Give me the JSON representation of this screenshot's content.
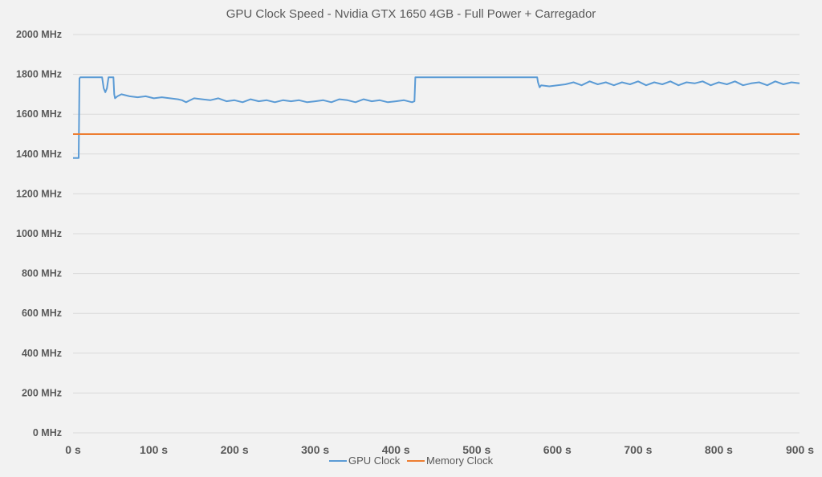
{
  "chart_data": {
    "type": "line",
    "title": "GPU Clock Speed - Nvidia GTX 1650 4GB - Full Power + Carregador",
    "xlabel": "",
    "ylabel": "",
    "xlim": [
      0,
      900
    ],
    "ylim": [
      0,
      2000
    ],
    "x_ticks": [
      "0 s",
      "100 s",
      "200 s",
      "300 s",
      "400 s",
      "500 s",
      "600 s",
      "700 s",
      "800 s",
      "900 s"
    ],
    "y_ticks": [
      "0 MHz",
      "200 MHz",
      "400 MHz",
      "600 MHz",
      "800 MHz",
      "1000 MHz",
      "1200 MHz",
      "1400 MHz",
      "1600 MHz",
      "1800 MHz",
      "2000 MHz"
    ],
    "grid": "horizontal",
    "legend_position": "bottom",
    "series": [
      {
        "name": "GPU Clock",
        "color": "#5b9bd5",
        "x": [
          0,
          7,
          8,
          9,
          10,
          20,
          30,
          33,
          36,
          38,
          40,
          42,
          44,
          46,
          48,
          50,
          51,
          52,
          55,
          60,
          70,
          80,
          90,
          100,
          110,
          120,
          130,
          135,
          140,
          150,
          160,
          170,
          180,
          190,
          200,
          210,
          220,
          230,
          240,
          250,
          260,
          270,
          280,
          290,
          300,
          310,
          320,
          330,
          340,
          350,
          360,
          370,
          380,
          390,
          400,
          410,
          420,
          423,
          424,
          425,
          430,
          450,
          500,
          550,
          575,
          576,
          578,
          580,
          590,
          600,
          610,
          620,
          630,
          640,
          650,
          660,
          670,
          680,
          690,
          700,
          710,
          720,
          730,
          740,
          750,
          760,
          770,
          780,
          790,
          800,
          810,
          820,
          830,
          840,
          850,
          860,
          870,
          880,
          890,
          900
        ],
        "y": [
          1380,
          1380,
          1780,
          1785,
          1785,
          1785,
          1785,
          1785,
          1785,
          1730,
          1710,
          1730,
          1785,
          1785,
          1785,
          1785,
          1700,
          1680,
          1690,
          1700,
          1690,
          1685,
          1690,
          1680,
          1685,
          1680,
          1675,
          1670,
          1660,
          1680,
          1675,
          1670,
          1680,
          1665,
          1670,
          1660,
          1675,
          1665,
          1670,
          1660,
          1670,
          1665,
          1670,
          1660,
          1665,
          1670,
          1660,
          1675,
          1670,
          1660,
          1675,
          1665,
          1670,
          1660,
          1665,
          1670,
          1660,
          1665,
          1785,
          1785,
          1785,
          1785,
          1785,
          1785,
          1785,
          1760,
          1735,
          1745,
          1740,
          1745,
          1750,
          1760,
          1745,
          1765,
          1750,
          1760,
          1745,
          1760,
          1750,
          1765,
          1745,
          1760,
          1750,
          1765,
          1745,
          1760,
          1755,
          1765,
          1745,
          1760,
          1750,
          1765,
          1745,
          1755,
          1760,
          1745,
          1765,
          1750,
          1760,
          1755
        ]
      },
      {
        "name": "Memory Clock",
        "color": "#ed7d31",
        "x": [
          0,
          900
        ],
        "y": [
          1500,
          1500
        ]
      }
    ]
  }
}
